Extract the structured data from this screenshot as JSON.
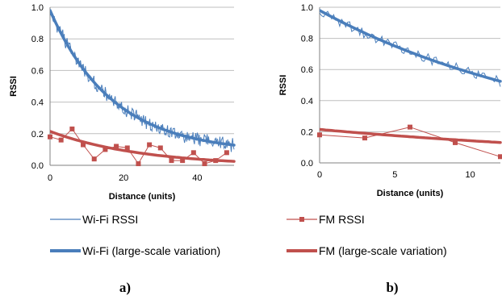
{
  "colors": {
    "wifi": "#4a7ebb",
    "fm": "#c0504d",
    "grid": "#bfbfbf"
  },
  "legend": [
    {
      "label": "Wi-Fi RSSI",
      "series": "wifi",
      "style": "thin"
    },
    {
      "label": "FM RSSI",
      "series": "fm",
      "style": "marker"
    },
    {
      "label": "Wi-Fi (large-scale variation)",
      "series": "wifi",
      "style": "thick"
    },
    {
      "label": "FM (large-scale variation)",
      "series": "fm",
      "style": "thick"
    }
  ],
  "chart_data": [
    {
      "type": "line",
      "panel_label": "a)",
      "xlabel": "Distance (units)",
      "ylabel": "RSSI",
      "xlim": [
        0,
        50
      ],
      "ylim": [
        0,
        1.0
      ],
      "xticks": [
        0,
        20,
        40
      ],
      "yticks": [
        0.0,
        0.2,
        0.4,
        0.6,
        0.8,
        1.0
      ],
      "ytick_labels": [
        "0.0",
        "0.2",
        "0.4",
        "0.6",
        "0.8",
        "1.0"
      ],
      "grid": "horizontal",
      "series": [
        {
          "name": "Wi-Fi RSSI",
          "kind": "wifi-noisy",
          "x_range": [
            0,
            50
          ],
          "trend": "wifi-a",
          "noise": 0.045
        },
        {
          "name": "FM RSSI",
          "kind": "fm-markers",
          "x": [
            0,
            3,
            6,
            9,
            12,
            15,
            18,
            21,
            24,
            27,
            30,
            33,
            36,
            39,
            42,
            45,
            48
          ],
          "y": [
            0.18,
            0.16,
            0.23,
            0.13,
            0.04,
            0.1,
            0.12,
            0.11,
            0.01,
            0.13,
            0.11,
            0.03,
            0.03,
            0.08,
            0.01,
            0.03,
            0.08
          ]
        },
        {
          "name": "Wi-Fi (large-scale variation)",
          "kind": "wifi-trend",
          "trend": "wifi-a",
          "x_range": [
            0,
            50
          ]
        },
        {
          "name": "FM (large-scale variation)",
          "kind": "fm-trend",
          "trend": "fm",
          "x_range": [
            0,
            50
          ]
        }
      ]
    },
    {
      "type": "line",
      "panel_label": "b)",
      "xlabel": "Distance (units)",
      "ylabel": "RSSI",
      "xlim": [
        0,
        12
      ],
      "ylim": [
        0,
        1.0
      ],
      "xticks": [
        0,
        5,
        10
      ],
      "yticks": [
        0.0,
        0.2,
        0.4,
        0.6,
        0.8,
        1.0
      ],
      "ytick_labels": [
        "0.0",
        "0.2",
        "0.4",
        "0.6",
        "0.8",
        "1.0"
      ],
      "grid": "horizontal",
      "series": [
        {
          "name": "Wi-Fi RSSI",
          "kind": "wifi-noisy",
          "x_range": [
            0,
            12
          ],
          "trend": "wifi-b",
          "noise": 0.035
        },
        {
          "name": "FM RSSI",
          "kind": "fm-markers",
          "x": [
            0,
            3,
            6,
            9,
            12
          ],
          "y": [
            0.18,
            0.16,
            0.23,
            0.13,
            0.04
          ]
        },
        {
          "name": "Wi-Fi (large-scale variation)",
          "kind": "wifi-trend",
          "trend": "wifi-b",
          "x_range": [
            0,
            12
          ]
        },
        {
          "name": "FM (large-scale variation)",
          "kind": "fm-trend",
          "trend": "fm",
          "x_range": [
            0,
            12
          ]
        }
      ]
    }
  ]
}
